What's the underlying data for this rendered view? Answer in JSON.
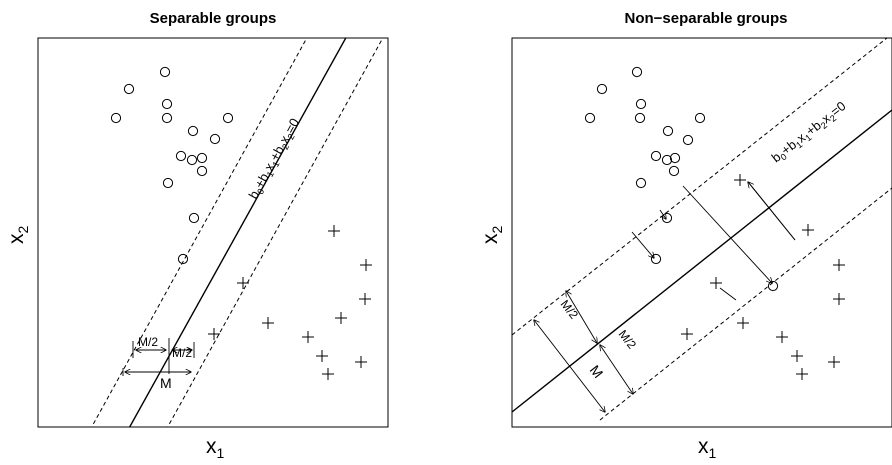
{
  "panels": [
    {
      "title": "Separable groups",
      "xlabel": "x",
      "xlabel_sub": "1",
      "ylabel": "x",
      "ylabel_sub": "2",
      "equation": {
        "b0": "b",
        "s0": "0",
        "p1": "+b",
        "s1": "1",
        "x1": "x",
        "sx1": "1",
        "p2": "+b",
        "s2": "2",
        "x2": "x",
        "sx2": "2",
        "rhs": "=0"
      },
      "margin_half_a": "M/2",
      "margin_half_b": "M/2",
      "margin_full": "M"
    },
    {
      "title": "Non−separable groups",
      "xlabel": "x",
      "xlabel_sub": "1",
      "ylabel": "x",
      "ylabel_sub": "2",
      "equation": {
        "b0": "b",
        "s0": "0",
        "p1": "+b",
        "s1": "1",
        "x1": "x",
        "sx1": "1",
        "p2": "+b",
        "s2": "2",
        "x2": "x",
        "sx2": "2",
        "rhs": "=0"
      },
      "margin_half_a": "M/2",
      "margin_half_b": "M/2",
      "margin_full": "M"
    }
  ],
  "chart_data": [
    {
      "type": "scatter",
      "title": "Separable groups",
      "xlabel": "x1",
      "ylabel": "x2",
      "grid": false,
      "series": [
        {
          "marker": "circle",
          "points": [
            [
              116,
              118
            ],
            [
              129,
              89
            ],
            [
              165,
              72
            ],
            [
              167,
              104
            ],
            [
              167,
              118
            ],
            [
              193,
              131
            ],
            [
              215,
              139
            ],
            [
              228,
              118
            ],
            [
              181,
              156
            ],
            [
              192,
              160
            ],
            [
              202,
              158
            ],
            [
              202,
              171
            ],
            [
              168,
              183
            ],
            [
              194,
              218
            ],
            [
              183,
              259
            ]
          ]
        },
        {
          "marker": "plus",
          "points": [
            [
              334,
              231
            ],
            [
              366,
              265
            ],
            [
              365,
              299
            ],
            [
              341,
              318
            ],
            [
              243,
              283
            ],
            [
              268,
              323
            ],
            [
              214,
              334
            ],
            [
              308,
              337
            ],
            [
              322,
              356
            ],
            [
              361,
              362
            ],
            [
              328,
              374
            ]
          ]
        }
      ]
    },
    {
      "type": "scatter",
      "title": "Non−separable groups",
      "xlabel": "x1",
      "ylabel": "x2",
      "grid": false,
      "series": [
        {
          "marker": "circle",
          "points": [
            [
              590,
              118
            ],
            [
              602,
              89
            ],
            [
              637,
              72
            ],
            [
              641,
              104
            ],
            [
              640,
              118
            ],
            [
              668,
              131
            ],
            [
              700,
              118
            ],
            [
              688,
              140
            ],
            [
              656,
              156
            ],
            [
              667,
              160
            ],
            [
              675,
              158
            ],
            [
              674,
              171
            ],
            [
              641,
              183
            ],
            [
              667,
              218
            ],
            [
              656,
              259
            ],
            [
              773,
              286
            ]
          ]
        },
        {
          "marker": "plus",
          "points": [
            [
              740,
              180
            ],
            [
              808,
              230
            ],
            [
              839,
              265
            ],
            [
              839,
              299
            ],
            [
              716,
              283
            ],
            [
              743,
              323
            ],
            [
              687,
              334
            ],
            [
              782,
              337
            ],
            [
              797,
              356
            ],
            [
              834,
              362
            ],
            [
              802,
              374
            ]
          ]
        }
      ]
    }
  ]
}
